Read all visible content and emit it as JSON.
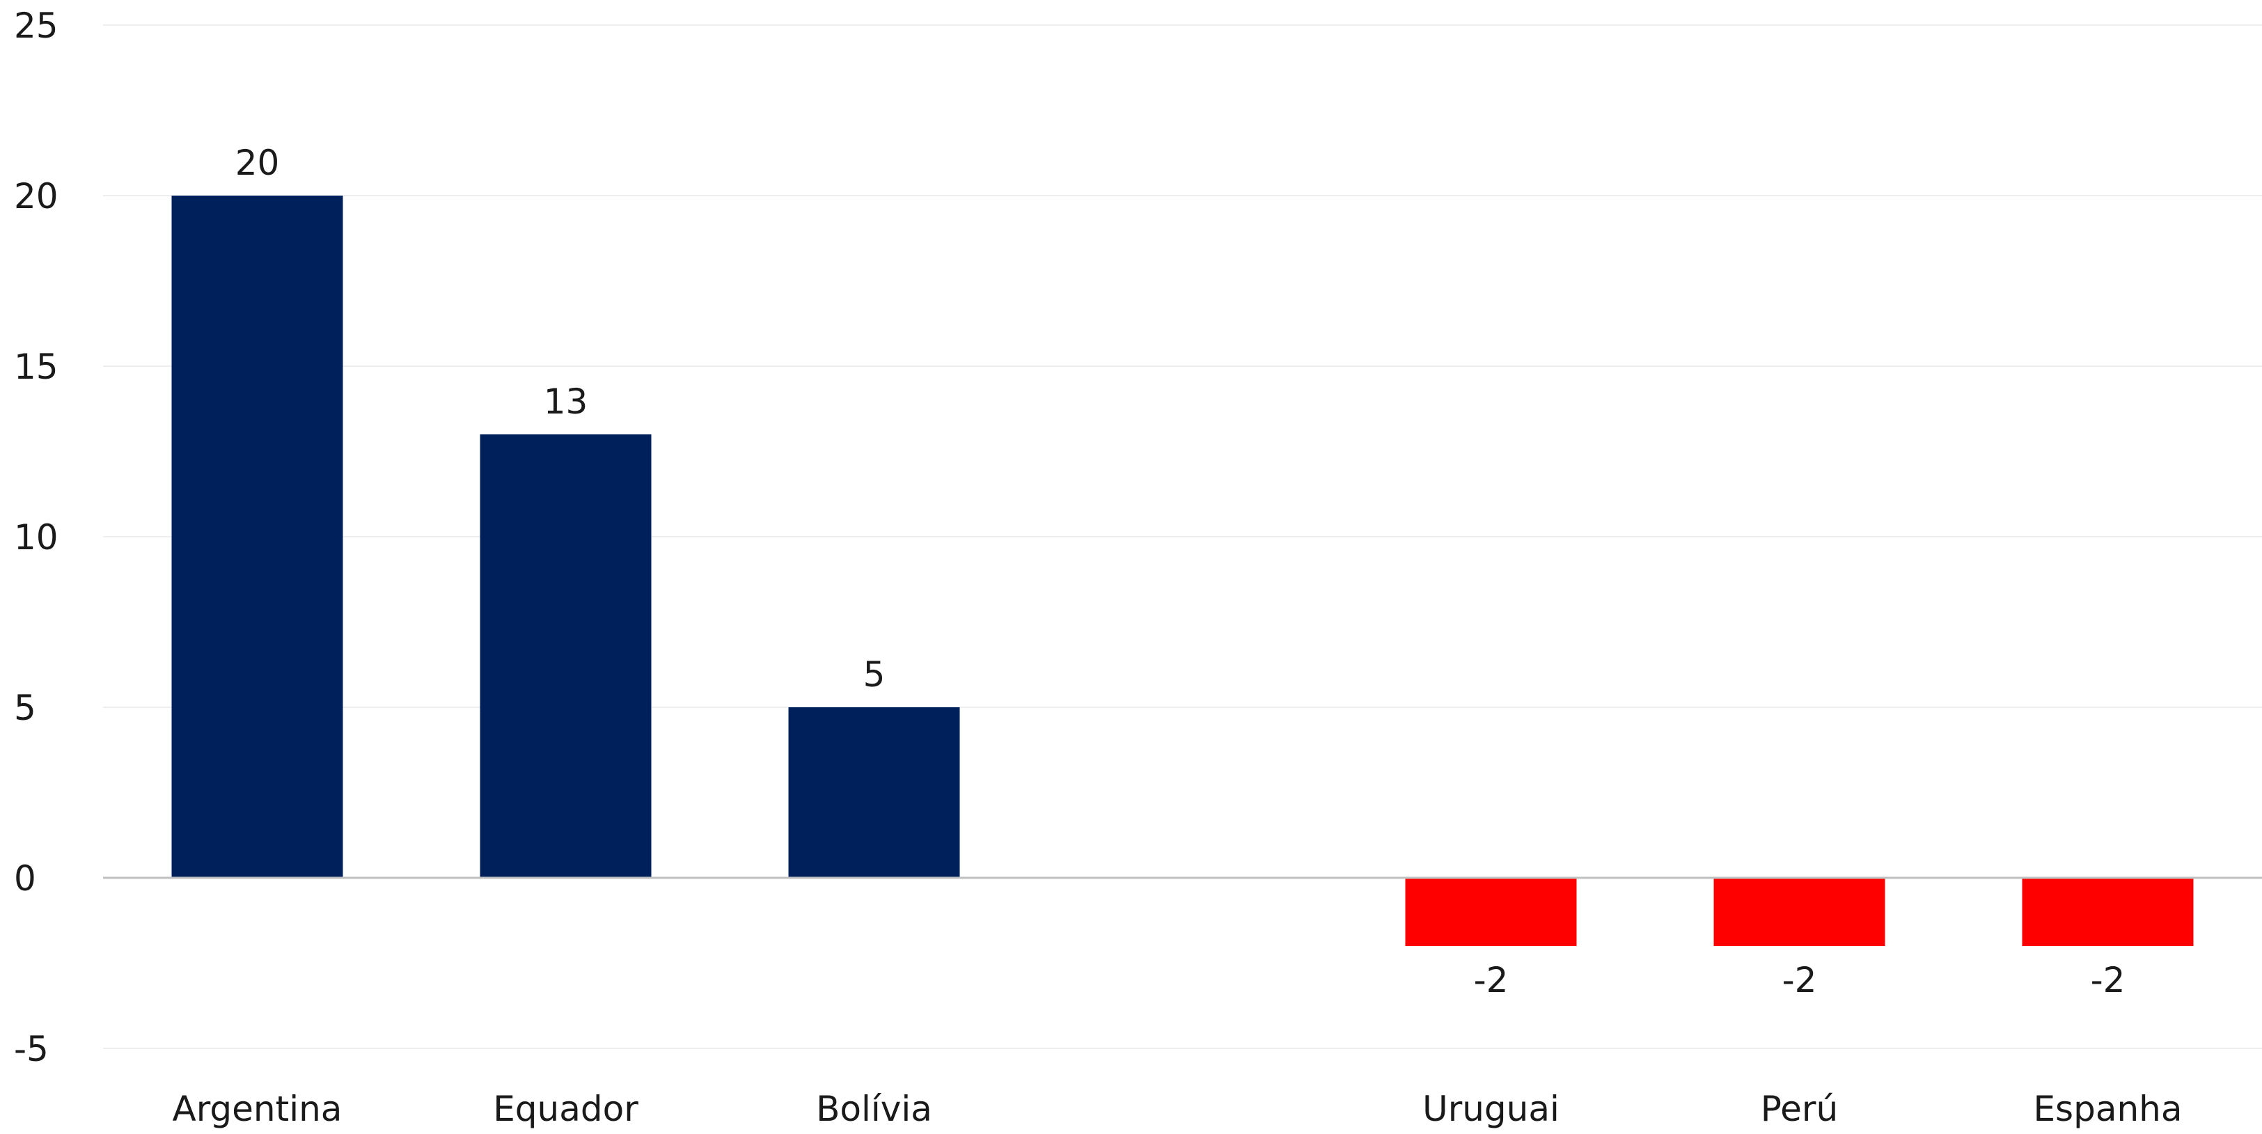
{
  "chart_data": {
    "type": "bar",
    "title": "",
    "xlabel": "",
    "ylabel": "",
    "categories": [
      "Argentina",
      "Equador",
      "Bolívia",
      "",
      "Uruguai",
      "Perú",
      "Espanha"
    ],
    "values": [
      20,
      13,
      5,
      null,
      -2,
      -2,
      -2
    ],
    "data_labels": [
      "20",
      "13",
      "5",
      "",
      "-2",
      "-2",
      "-2"
    ],
    "ylim": [
      -5,
      25
    ],
    "yticks": [
      -5,
      0,
      5,
      10,
      15,
      20,
      25
    ],
    "ytick_labels": [
      "-5",
      "0",
      "5",
      "10",
      "15",
      "20",
      "25"
    ],
    "grid": true,
    "legend": "none",
    "colors": {
      "positive": "#00205b",
      "negative": "#ff0000",
      "gridline": "#eeeeee",
      "zero_line": "#c0c0c0",
      "text": "#1a1a1a"
    }
  }
}
